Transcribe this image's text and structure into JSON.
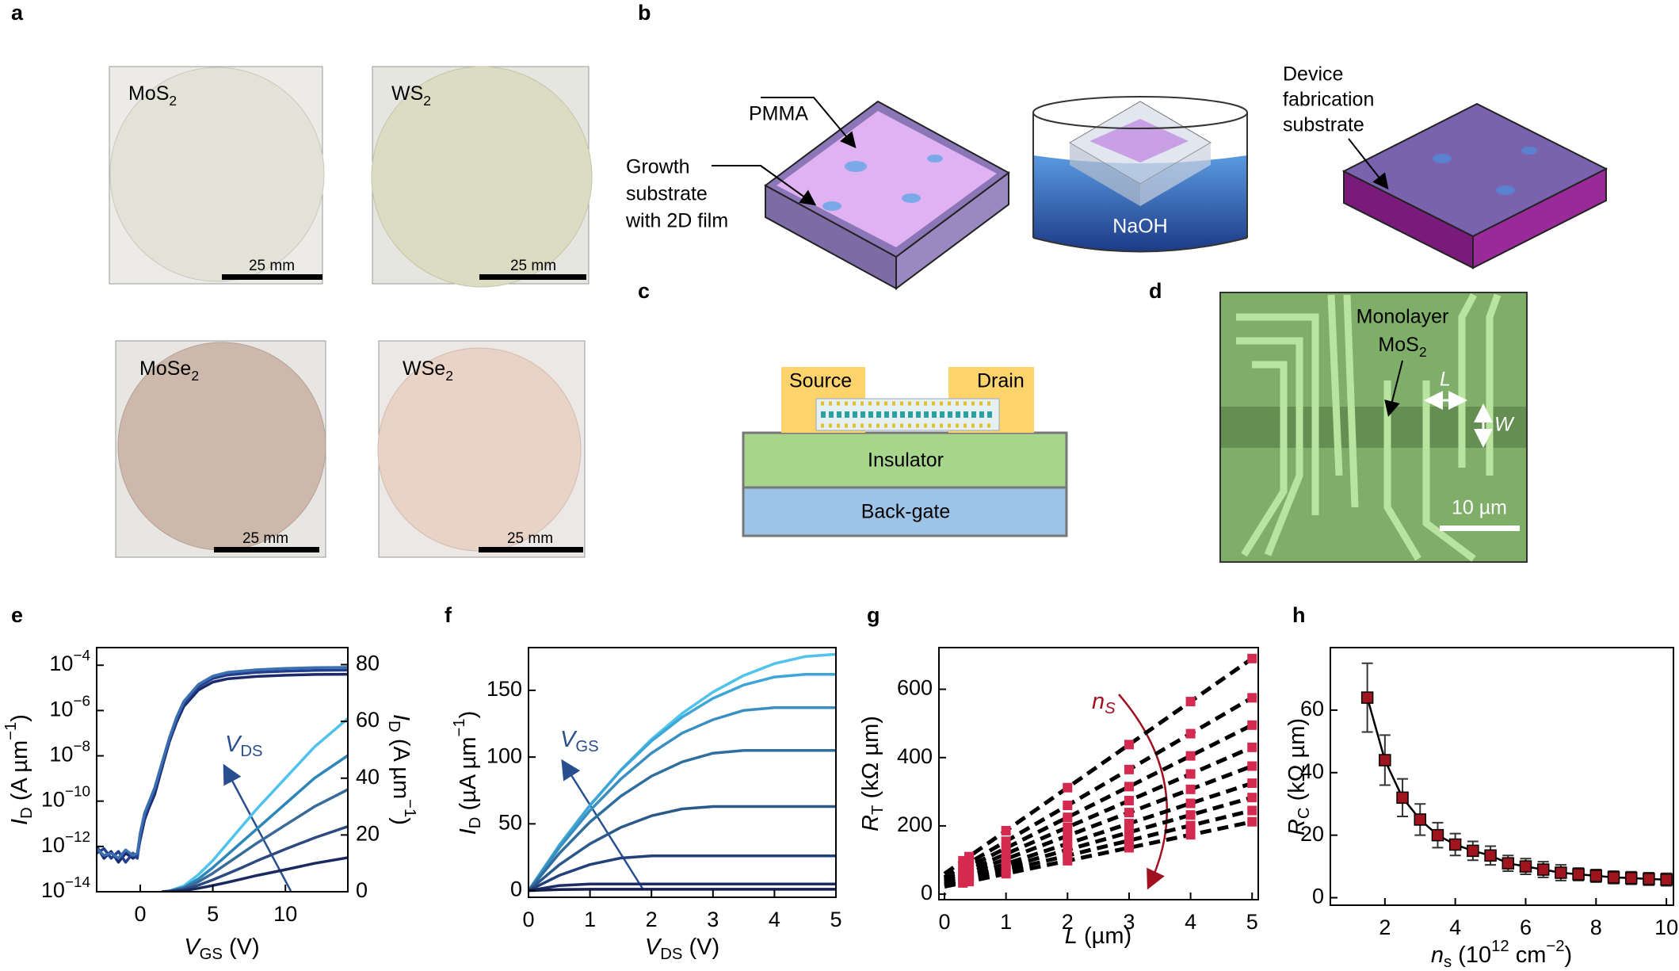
{
  "figure": {
    "a": {
      "label": "a",
      "photos": [
        {
          "name": [
            "MoS",
            "2"
          ],
          "scale": "25 mm"
        },
        {
          "name": [
            "WS",
            "2"
          ],
          "scale": "25 mm"
        },
        {
          "name": [
            "MoSe",
            "2"
          ],
          "scale": "25 mm"
        },
        {
          "name": [
            "WSe",
            "2"
          ],
          "scale": "25 mm"
        }
      ]
    },
    "b": {
      "label": "b",
      "pmma": "PMMA",
      "growth": [
        "Growth",
        "substrate",
        "with 2D film"
      ],
      "naoh": "NaOH",
      "device": [
        "Device",
        "fabrication",
        "substrate"
      ]
    },
    "c": {
      "label": "c",
      "source": "Source",
      "drain": "Drain",
      "insulator": "Insulator",
      "gate": "Back-gate"
    },
    "d": {
      "label": "d",
      "monolayer": "Monolayer",
      "material": [
        "MoS",
        "2"
      ],
      "length": "L",
      "width": "W",
      "scale": "10 µm"
    }
  },
  "chart_data": [
    {
      "type": "line",
      "panel": "e",
      "xlabel": [
        "V",
        "GS",
        " (V)"
      ],
      "ylabel": [
        "I",
        "D",
        " (A µm",
        "−1",
        ")"
      ],
      "y2label": [
        "I",
        "D",
        " (A µm",
        "−1",
        ")"
      ],
      "annotation": [
        "V",
        "DS"
      ],
      "xlim": [
        -3,
        14.3
      ],
      "xticks": [
        0,
        5,
        10
      ],
      "yscale": "log",
      "ylim": [
        1e-14,
        0.0006
      ],
      "yticks": [
        {
          "value": 1e-14,
          "label": [
            "10",
            "−14"
          ]
        },
        {
          "value": 1e-12,
          "label": [
            "10",
            "−12"
          ]
        },
        {
          "value": 1e-10,
          "label": [
            "10",
            "−10"
          ]
        },
        {
          "value": 1e-08,
          "label": [
            "10",
            "−8"
          ]
        },
        {
          "value": 1e-06,
          "label": [
            "10",
            "−6"
          ]
        },
        {
          "value": 0.0001,
          "label": [
            "10",
            "−4"
          ]
        }
      ],
      "y2lim": [
        0,
        86
      ],
      "y2ticks": [
        0,
        20,
        40,
        60,
        80
      ],
      "series": [
        {
          "color": "#1a2a6c",
          "x": [
            -3,
            -2.5,
            -2,
            -1.5,
            -1,
            -0.5,
            -0.2,
            0,
            0.3,
            0.6,
            1,
            1.5,
            2,
            2.5,
            3,
            4,
            5,
            6,
            8,
            10,
            12,
            14.3
          ],
          "values": [
            1e-12,
            3e-13,
            6e-13,
            2e-13,
            5e-13,
            3e-13,
            4e-13,
            2e-12,
            1.5e-11,
            5e-11,
            2e-10,
            3e-09,
            4e-08,
            3e-07,
            1.5e-06,
            8e-06,
            1.8e-05,
            2.5e-05,
            3.2e-05,
            3.6e-05,
            3.9e-05,
            4e-05
          ]
        },
        {
          "color": "#233d8f",
          "x": [
            -3,
            -2.5,
            -2,
            -1.5,
            -1,
            -0.5,
            -0.2,
            0,
            0.3,
            0.6,
            1,
            1.5,
            2,
            2.5,
            3,
            4,
            5,
            6,
            8,
            10,
            12,
            14.3
          ],
          "values": [
            5e-13,
            8e-13,
            3e-13,
            6e-13,
            2e-13,
            5e-13,
            3e-13,
            3e-12,
            2e-11,
            7e-11,
            3e-10,
            4e-09,
            5e-08,
            4e-07,
            2e-06,
            1.1e-05,
            2.6e-05,
            3.7e-05,
            4.8e-05,
            5.5e-05,
            5.9e-05,
            6.1e-05
          ]
        },
        {
          "color": "#3a6fb0",
          "x": [
            -3,
            -2.5,
            -2,
            -1.5,
            -1,
            -0.5,
            -0.2,
            0,
            0.3,
            0.6,
            1,
            1.5,
            2,
            2.5,
            3,
            4,
            5,
            6,
            8,
            10,
            12,
            14.3
          ],
          "values": [
            8e-13,
            4e-13,
            5e-13,
            3e-13,
            7e-13,
            4e-13,
            5e-13,
            4e-12,
            3e-11,
            9e-11,
            4e-10,
            5e-09,
            6e-08,
            5e-07,
            2.5e-06,
            1.4e-05,
            3.3e-05,
            4.8e-05,
            6.3e-05,
            7.2e-05,
            7.8e-05,
            8e-05
          ]
        },
        {
          "color": "#4fc3ec",
          "axis": "y2",
          "x": [
            1.5,
            2,
            3,
            4,
            5,
            6,
            7,
            8,
            10,
            12,
            14.3
          ],
          "values": [
            0,
            0.3,
            2,
            6,
            11,
            17,
            23,
            29,
            40,
            51,
            61
          ]
        },
        {
          "color": "#2c86b8",
          "axis": "y2",
          "x": [
            1.5,
            2,
            3,
            4,
            5,
            6,
            7,
            8,
            10,
            12,
            14.3
          ],
          "values": [
            0,
            0.2,
            1.5,
            4.5,
            8.5,
            13,
            17.5,
            22,
            31,
            40,
            48
          ]
        },
        {
          "color": "#3a6a9a",
          "axis": "y2",
          "x": [
            1.5,
            2,
            3,
            4,
            5,
            6,
            7,
            8,
            10,
            12,
            14.3
          ],
          "values": [
            0,
            0.2,
            1.2,
            3.5,
            6.5,
            10,
            13.5,
            17,
            23.5,
            30,
            36
          ]
        },
        {
          "color": "#2c4a80",
          "axis": "y2",
          "x": [
            1.5,
            2,
            3,
            4,
            5,
            6,
            7,
            8,
            10,
            12,
            14.3
          ],
          "values": [
            0,
            0.1,
            0.8,
            2.3,
            4.2,
            6.3,
            8.5,
            10.8,
            15,
            19,
            23
          ]
        },
        {
          "color": "#1a2a60",
          "axis": "y2",
          "x": [
            1.5,
            2,
            3,
            4,
            5,
            6,
            7,
            8,
            10,
            12,
            14.3
          ],
          "values": [
            0,
            0.1,
            0.4,
            1.2,
            2.2,
            3.3,
            4.5,
            5.7,
            7.8,
            10,
            12
          ]
        }
      ]
    },
    {
      "type": "line",
      "panel": "f",
      "xlabel": [
        "V",
        "DS",
        " (V)"
      ],
      "ylabel": [
        "I",
        "D",
        " (µA µm",
        "−1",
        ")"
      ],
      "annotation": [
        "V",
        "GS"
      ],
      "xlim": [
        0,
        5
      ],
      "xticks": [
        0,
        1,
        2,
        3,
        4,
        5
      ],
      "ylim": [
        -5,
        182
      ],
      "yticks": [
        0,
        50,
        100,
        150
      ],
      "x": [
        0,
        0.5,
        1,
        1.5,
        2,
        2.5,
        3,
        3.5,
        4,
        4.5,
        5
      ],
      "series": [
        {
          "color": "#4fc3ec",
          "values": [
            0,
            33.6,
            63.7,
            90.3,
            113.3,
            132.8,
            148.7,
            161.1,
            170,
            175.3,
            177
          ]
        },
        {
          "color": "#3ea6d6",
          "values": [
            0,
            34,
            64,
            90,
            112,
            130,
            144,
            154,
            160,
            162,
            162
          ]
        },
        {
          "color": "#3a8fc0",
          "values": [
            0,
            32,
            60,
            83.5,
            103,
            118,
            128,
            135,
            137,
            137,
            137
          ]
        },
        {
          "color": "#2f6f9e",
          "values": [
            0,
            27.8,
            51.4,
            70.7,
            85.7,
            96.4,
            102.9,
            105,
            105,
            105,
            105
          ]
        },
        {
          "color": "#2b5a8a",
          "values": [
            0,
            19.3,
            35,
            47.3,
            56,
            61.2,
            63,
            63,
            63,
            63,
            63
          ]
        },
        {
          "color": "#22407a",
          "values": [
            0,
            11.4,
            19.5,
            24.4,
            26,
            26,
            26,
            26,
            26,
            26,
            26
          ]
        },
        {
          "color": "#1b2d66",
          "values": [
            0,
            3.8,
            5,
            5,
            5,
            5,
            5,
            5,
            5,
            5,
            5
          ]
        },
        {
          "color": "#141f50",
          "values": [
            0,
            0.8,
            1,
            1,
            1,
            1,
            1,
            1,
            1,
            1,
            1
          ]
        }
      ]
    },
    {
      "type": "scatter",
      "panel": "g",
      "xlabel": [
        "L",
        " (µm)"
      ],
      "ylabel": [
        "R",
        "T",
        " (kΩ µm)"
      ],
      "annotation": [
        "n",
        "S"
      ],
      "xlim": [
        -0.09,
        5.1
      ],
      "xticks": [
        0,
        1,
        2,
        3,
        4,
        5
      ],
      "ylim": [
        -16,
        722
      ],
      "yticks": [
        0,
        200,
        400,
        600
      ],
      "x": [
        0.3,
        0.4,
        1,
        2,
        3,
        4,
        5
      ],
      "color": "#d42a4f",
      "series": [
        {
          "values": [
            98,
            110,
            186,
            312,
            438,
            564,
            690
          ]
        },
        {
          "values": [
            82,
            92,
            155,
            260,
            365,
            470,
            575
          ]
        },
        {
          "values": [
            72,
            81,
            135,
            225,
            315,
            405,
            495
          ]
        },
        {
          "values": [
            63,
            71,
            118,
            196,
            274,
            352,
            430
          ]
        },
        {
          "values": [
            55,
            62,
            103,
            171,
            239,
            307,
            375
          ]
        },
        {
          "values": [
            48,
            54,
            89,
            148,
            207,
            266,
            325
          ]
        },
        {
          "values": [
            43,
            48,
            79,
            130,
            181,
            232,
            283
          ]
        },
        {
          "values": [
            38,
            43,
            69,
            113,
            157,
            201,
            245
          ]
        },
        {
          "values": [
            33,
            37,
            60,
            98,
            136,
            174,
            212
          ]
        }
      ],
      "fit_x": [
        0,
        5
      ],
      "fit_color": "#000000",
      "fits": [
        {
          "values": [
            60,
            690
          ]
        },
        {
          "values": [
            50,
            575
          ]
        },
        {
          "values": [
            45,
            495
          ]
        },
        {
          "values": [
            40,
            430
          ]
        },
        {
          "values": [
            35,
            375
          ]
        },
        {
          "values": [
            30,
            325
          ]
        },
        {
          "values": [
            28,
            283
          ]
        },
        {
          "values": [
            25,
            245
          ]
        },
        {
          "values": [
            22,
            212
          ]
        }
      ]
    },
    {
      "type": "errorbar",
      "panel": "h",
      "xlabel": [
        "n",
        "s",
        " (10",
        "12",
        " cm",
        "−2",
        ")"
      ],
      "ylabel": [
        "R",
        "C",
        " (kΩ µm)"
      ],
      "xlim": [
        0.45,
        10.2
      ],
      "xticks": [
        2,
        4,
        6,
        8,
        10
      ],
      "ylim": [
        -2.4,
        80
      ],
      "yticks": [
        0,
        20,
        40,
        60
      ],
      "color": "#a0141e",
      "line_color": "#000000",
      "x": [
        1.5,
        2,
        2.5,
        3,
        3.5,
        4,
        4.5,
        5,
        5.5,
        6,
        6.5,
        7,
        7.5,
        8,
        8.5,
        9,
        9.5,
        10
      ],
      "values": [
        64,
        44,
        32,
        25,
        20,
        17,
        15,
        13.5,
        11,
        10,
        9,
        8,
        7.5,
        7,
        6.5,
        6.3,
        6,
        5.8
      ],
      "errors": [
        11,
        8,
        6,
        5,
        4,
        3.5,
        3,
        3,
        2.5,
        2.5,
        2.5,
        2.5,
        2,
        2,
        2,
        2,
        2,
        2
      ]
    }
  ]
}
